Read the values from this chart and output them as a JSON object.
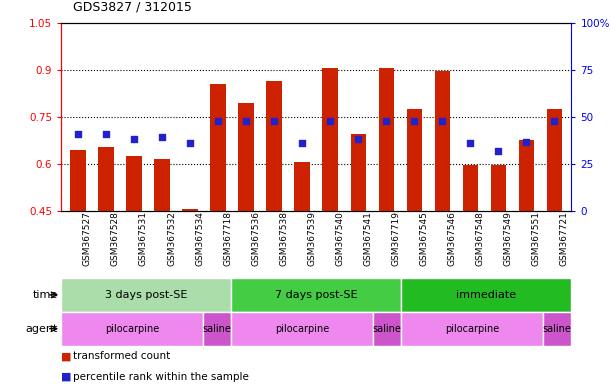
{
  "title": "GDS3827 / 312015",
  "samples": [
    "GSM367527",
    "GSM367528",
    "GSM367531",
    "GSM367532",
    "GSM367534",
    "GSM367718",
    "GSM367536",
    "GSM367538",
    "GSM367539",
    "GSM367540",
    "GSM367541",
    "GSM367719",
    "GSM367545",
    "GSM367546",
    "GSM367548",
    "GSM367549",
    "GSM367551",
    "GSM367721"
  ],
  "bar_values": [
    0.645,
    0.655,
    0.625,
    0.615,
    0.455,
    0.855,
    0.795,
    0.865,
    0.605,
    0.905,
    0.695,
    0.905,
    0.775,
    0.895,
    0.595,
    0.595,
    0.675,
    0.775
  ],
  "dot_values": [
    0.695,
    0.695,
    0.68,
    0.685,
    0.665,
    0.735,
    0.735,
    0.735,
    0.665,
    0.735,
    0.68,
    0.735,
    0.735,
    0.735,
    0.665,
    0.64,
    0.67,
    0.735
  ],
  "bar_bottom": 0.45,
  "ylim_left": [
    0.45,
    1.05
  ],
  "ylim_right": [
    0,
    100
  ],
  "yticks_left": [
    0.45,
    0.6,
    0.75,
    0.9,
    1.05
  ],
  "ytick_labels_left": [
    "0.45",
    "0.6",
    "0.75",
    "0.9",
    "1.05"
  ],
  "yticks_right": [
    0,
    25,
    50,
    75,
    100
  ],
  "ytick_labels_right": [
    "0",
    "25",
    "50",
    "75",
    "100%"
  ],
  "hlines": [
    0.6,
    0.75,
    0.9
  ],
  "bar_color": "#cc2200",
  "dot_color": "#2222cc",
  "bg_color": "#ffffff",
  "plot_bg": "#ffffff",
  "time_groups": [
    {
      "label": "3 days post-SE",
      "start": 0,
      "end": 6,
      "color": "#aaddaa"
    },
    {
      "label": "7 days post-SE",
      "start": 6,
      "end": 12,
      "color": "#44cc44"
    },
    {
      "label": "immediate",
      "start": 12,
      "end": 18,
      "color": "#22bb22"
    }
  ],
  "agent_groups": [
    {
      "label": "pilocarpine",
      "start": 0,
      "end": 5,
      "color": "#ee88ee"
    },
    {
      "label": "saline",
      "start": 5,
      "end": 6,
      "color": "#cc55cc"
    },
    {
      "label": "pilocarpine",
      "start": 6,
      "end": 11,
      "color": "#ee88ee"
    },
    {
      "label": "saline",
      "start": 11,
      "end": 12,
      "color": "#cc55cc"
    },
    {
      "label": "pilocarpine",
      "start": 12,
      "end": 17,
      "color": "#ee88ee"
    },
    {
      "label": "saline",
      "start": 17,
      "end": 18,
      "color": "#cc55cc"
    }
  ],
  "time_label": "time",
  "agent_label": "agent",
  "legend_items": [
    {
      "label": "transformed count",
      "color": "#cc2200"
    },
    {
      "label": "percentile rank within the sample",
      "color": "#2222cc"
    }
  ],
  "gridline_color": "#000000"
}
